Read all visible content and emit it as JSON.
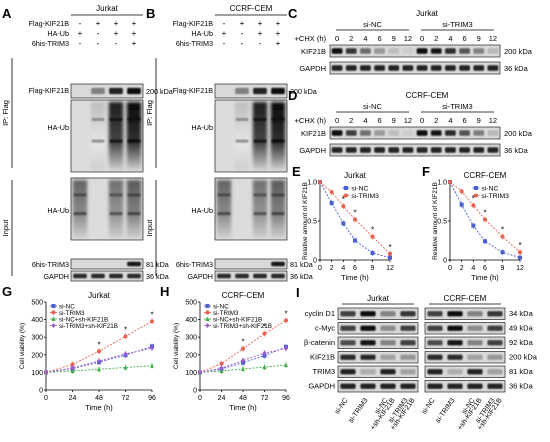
{
  "panels": {
    "A": {
      "letter": "A",
      "cell_line": "Jurkat",
      "rows": [
        "Flag-KIF21B",
        "HA-Ub",
        "6his-TRIM3"
      ],
      "signs": [
        [
          "-",
          "+",
          "+",
          "+"
        ],
        [
          "+",
          "-",
          "+",
          "+"
        ],
        [
          "-",
          "-",
          "-",
          "+"
        ]
      ],
      "ip_label": "IP: Flag",
      "input_label": "Input",
      "ip_blots": [
        "Flag-KIF21B",
        "HA-Ub"
      ],
      "input_blots": [
        "HA-Ub",
        "6his-TRIM3",
        "GAPDH"
      ],
      "kda": [
        "200 kDa",
        "81 kDa",
        "36 kDa"
      ]
    },
    "B": {
      "letter": "B",
      "cell_line": "CCRF-CEM",
      "rows": [
        "Flag-KIF21B",
        "HA-Ub",
        "6his-TRIM3"
      ],
      "signs": [
        [
          "-",
          "+",
          "+",
          "+"
        ],
        [
          "+",
          "-",
          "+",
          "+"
        ],
        [
          "-",
          "-",
          "-",
          "+"
        ]
      ],
      "ip_label": "IP: Flag",
      "input_label": "Input",
      "ip_blots": [
        "Flag-KIF21B",
        "HA-Ub"
      ],
      "input_blots": [
        "HA-Ub",
        "6his-TRIM3",
        "GAPDH"
      ],
      "kda": [
        "200 kDa",
        "81 kDa",
        "36 kDa"
      ]
    },
    "C": {
      "letter": "C",
      "cell_line": "Jurkat",
      "chx_label": "+CHX (h)",
      "groups": [
        "si-NC",
        "si-TRIM3"
      ],
      "times": [
        "0",
        "2",
        "4",
        "6",
        "9",
        "12"
      ],
      "blots": [
        "KIF21B",
        "GAPDH"
      ],
      "kda": [
        "200 kDa",
        "36 kDa"
      ]
    },
    "D": {
      "letter": "D",
      "cell_line": "CCRF-CEM",
      "chx_label": "+CHX (h)",
      "groups": [
        "si-NC",
        "si-TRIM3"
      ],
      "times": [
        "0",
        "2",
        "4",
        "6",
        "9",
        "12"
      ],
      "blots": [
        "KIF21B",
        "GAPDH"
      ],
      "kda": [
        "200 kDa",
        "36 kDa"
      ]
    },
    "I": {
      "letter": "I",
      "cell_lines": [
        "Jurkat",
        "CCRF-CEM"
      ],
      "proteins": [
        "cyclin D1",
        "c-Myc",
        "β-catenin",
        "KIF21B",
        "TRIM3",
        "GAPDH"
      ],
      "kda": [
        "34 kDa",
        "49 kDa",
        "92 kDa",
        "200 kDa",
        "81 kDa",
        "36 kDa"
      ],
      "lanes": [
        "si-NC",
        "si-TRIM3",
        "si-NC\n+sh-KIF21B",
        "si-TRIM3\n+sh-KIF21B"
      ]
    }
  },
  "chart_data": [
    {
      "panel": "E",
      "type": "line",
      "title": "Jurkat",
      "xlabel": "Time (h)",
      "ylabel": "Relative amount of KIF21B",
      "x": [
        0,
        2,
        4,
        6,
        9,
        12
      ],
      "xlim": [
        0,
        12
      ],
      "ylim": [
        0,
        1.0
      ],
      "yticks": [
        "0",
        "0.5",
        "1.0"
      ],
      "series": [
        {
          "name": "si-NC",
          "color": "#4a5fd0",
          "marker": "square",
          "values": [
            1.0,
            0.73,
            0.47,
            0.25,
            0.09,
            0.03
          ]
        },
        {
          "name": "si-TRIM3",
          "color": "#e8604f",
          "marker": "circle",
          "values": [
            1.0,
            0.87,
            0.69,
            0.52,
            0.3,
            0.08
          ]
        }
      ],
      "annotations": [
        "*",
        "*",
        "*",
        "*"
      ],
      "legend": "top-right"
    },
    {
      "panel": "F",
      "type": "line",
      "title": "CCRF-CEM",
      "xlabel": "Time (h)",
      "ylabel": "Relative amount of KIF21B",
      "x": [
        0,
        2,
        4,
        6,
        9,
        12
      ],
      "xlim": [
        0,
        12
      ],
      "ylim": [
        0,
        1.0
      ],
      "yticks": [
        "0",
        "0.5",
        "1.0"
      ],
      "series": [
        {
          "name": "si-NC",
          "color": "#4a5fd0",
          "marker": "square",
          "values": [
            1.0,
            0.71,
            0.44,
            0.24,
            0.1,
            0.03
          ]
        },
        {
          "name": "si-TRIM3",
          "color": "#e8604f",
          "marker": "circle",
          "values": [
            1.0,
            0.88,
            0.7,
            0.52,
            0.3,
            0.1
          ]
        }
      ],
      "annotations": [
        "*",
        "*",
        "*",
        "*"
      ],
      "legend": "top-right"
    },
    {
      "panel": "G",
      "type": "line",
      "title": "Jurkat",
      "xlabel": "Time (h)",
      "ylabel": "Cell viability (%)",
      "x": [
        0,
        24,
        48,
        72,
        96
      ],
      "xlim": [
        0,
        96
      ],
      "ylim": [
        0,
        500
      ],
      "yticks": [
        "0",
        "100",
        "200",
        "300",
        "400",
        "500"
      ],
      "series": [
        {
          "name": "si-NC",
          "color": "#4a5fd0",
          "marker": "square",
          "values": [
            100,
            122,
            158,
            198,
            248
          ]
        },
        {
          "name": "si-TRIM3",
          "color": "#e8604f",
          "marker": "circle",
          "values": [
            100,
            145,
            220,
            305,
            390
          ]
        },
        {
          "name": "si-NC+sh-KIF21B",
          "color": "#3fae49",
          "marker": "triangle",
          "values": [
            100,
            108,
            118,
            128,
            138
          ]
        },
        {
          "name": "si-TRIM3+sh-KIF21B",
          "color": "#a25ad0",
          "marker": "diamond",
          "values": [
            100,
            125,
            165,
            205,
            238
          ]
        }
      ],
      "annotations": [
        "*",
        "*",
        "*"
      ],
      "legend": "top-left"
    },
    {
      "panel": "H",
      "type": "line",
      "title": "CCRF-CEM",
      "xlabel": "Time (h)",
      "ylabel": "Cell viability (%)",
      "x": [
        0,
        24,
        48,
        72,
        96
      ],
      "xlim": [
        0,
        96
      ],
      "ylim": [
        0,
        500
      ],
      "yticks": [
        "0",
        "100",
        "200",
        "300",
        "400",
        "500"
      ],
      "series": [
        {
          "name": "si-NC",
          "color": "#4a5fd0",
          "marker": "square",
          "values": [
            100,
            120,
            155,
            195,
            245
          ]
        },
        {
          "name": "si-TRIM3",
          "color": "#e8604f",
          "marker": "circle",
          "values": [
            100,
            150,
            235,
            320,
            395
          ]
        },
        {
          "name": "si-NC+sh-KIF21B",
          "color": "#3fae49",
          "marker": "triangle",
          "values": [
            100,
            108,
            120,
            130,
            142
          ]
        },
        {
          "name": "si-TRIM3+sh-KIF21B",
          "color": "#a25ad0",
          "marker": "diamond",
          "values": [
            100,
            124,
            168,
            210,
            236
          ]
        }
      ],
      "annotations": [
        "*",
        "*",
        "*"
      ],
      "legend": "top-left"
    }
  ]
}
